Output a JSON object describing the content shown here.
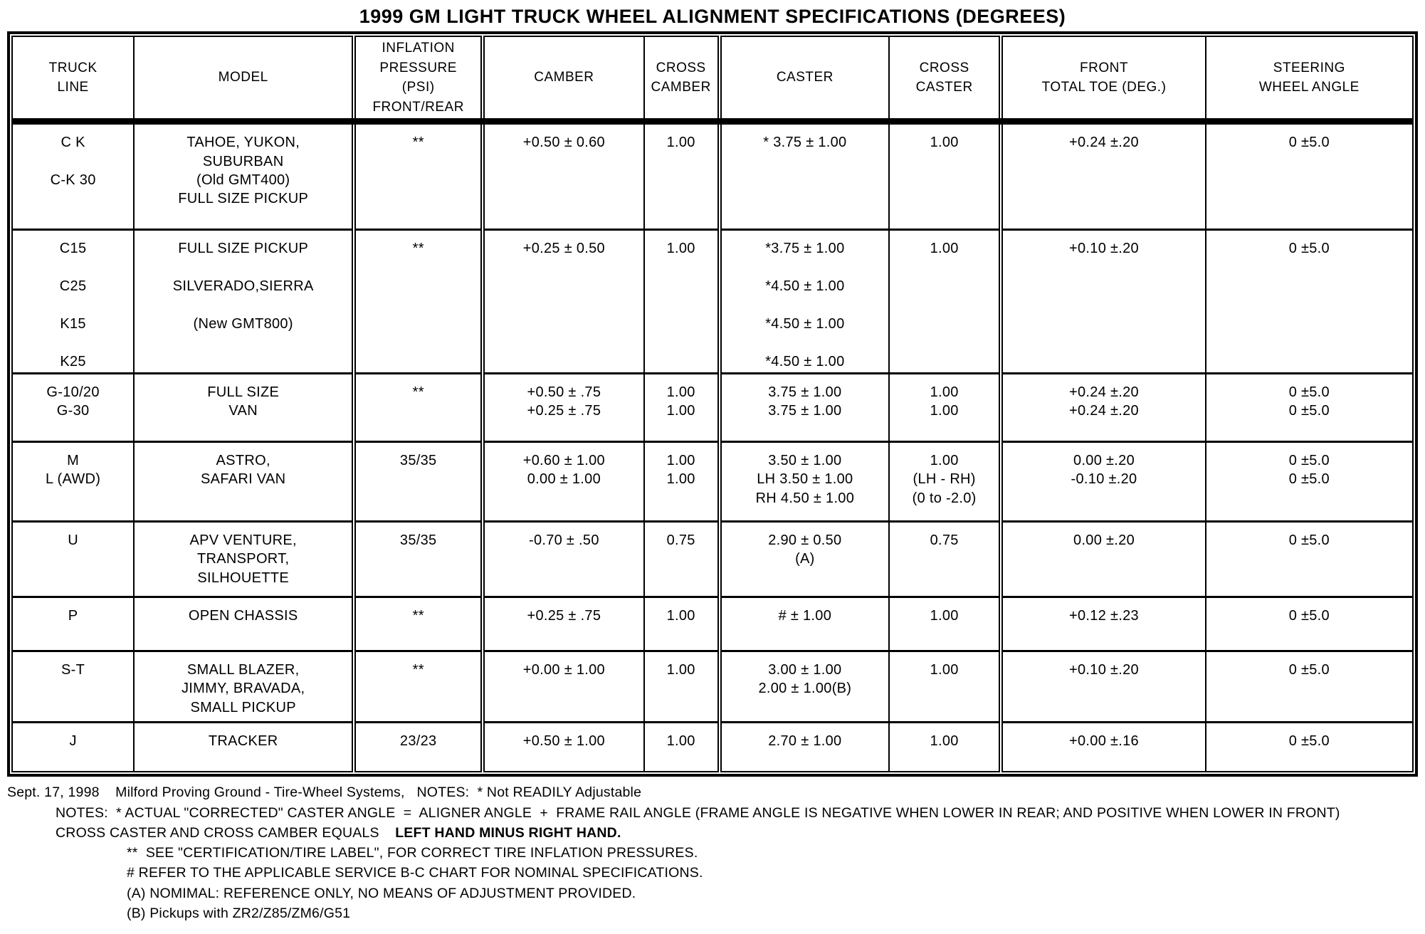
{
  "title": "1999 GM LIGHT TRUCK WHEEL ALIGNMENT SPECIFICATIONS (DEGREES)",
  "table": {
    "columns": [
      "TRUCK\nLINE",
      "MODEL",
      "INFLATION\nPRESSURE\n(PSI)\nFRONT/REAR",
      "CAMBER",
      "CROSS\nCAMBER",
      "CASTER",
      "CROSS\nCASTER",
      "FRONT\nTOTAL TOE (DEG.)",
      "STEERING\nWHEEL ANGLE"
    ],
    "rows": [
      [
        "C K\n\nC-K 30",
        "TAHOE, YUKON,\nSUBURBAN\n(Old GMT400)\nFULL SIZE PICKUP",
        "**",
        "+0.50 ± 0.60",
        "1.00",
        "* 3.75 ± 1.00",
        "1.00",
        "+0.24 ±.20",
        "0 ±5.0"
      ],
      [
        "C15\n\nC25\n\nK15\n\nK25",
        "FULL SIZE PICKUP\n\nSILVERADO,SIERRA\n\n(New GMT800)",
        "**",
        "+0.25 ± 0.50",
        "1.00",
        "*3.75 ± 1.00\n\n*4.50 ± 1.00\n\n*4.50 ± 1.00\n\n*4.50 ± 1.00",
        "1.00",
        "+0.10 ±.20",
        "0 ±5.0"
      ],
      [
        "G-10/20\nG-30",
        "FULL SIZE\nVAN",
        "**",
        "+0.50 ± .75\n+0.25 ± .75",
        "1.00\n1.00",
        "3.75 ± 1.00\n3.75 ± 1.00",
        "1.00\n1.00",
        "+0.24 ±.20\n+0.24 ±.20",
        "0 ±5.0\n0 ±5.0"
      ],
      [
        "M\nL (AWD)",
        "ASTRO,\nSAFARI VAN",
        "35/35",
        "+0.60 ± 1.00\n0.00 ± 1.00",
        "1.00\n1.00",
        "3.50 ± 1.00\nLH 3.50 ± 1.00\nRH 4.50 ± 1.00",
        "1.00\n(LH - RH)\n(0 to -2.0)",
        "0.00 ±.20\n-0.10 ±.20",
        "0 ±5.0\n0 ±5.0"
      ],
      [
        "U",
        "APV VENTURE,\nTRANSPORT,\nSILHOUETTE",
        "35/35",
        "-0.70 ± .50",
        "0.75",
        "2.90 ± 0.50\n(A)",
        "0.75",
        "0.00 ±.20",
        "0 ±5.0"
      ],
      [
        "P",
        "OPEN CHASSIS",
        "**",
        "+0.25 ± .75",
        "1.00",
        "# ± 1.00",
        "1.00",
        "+0.12 ±.23",
        "0 ±5.0"
      ],
      [
        "S-T",
        "SMALL BLAZER,\nJIMMY, BRAVADA,\nSMALL PICKUP",
        "**",
        "+0.00 ± 1.00",
        "1.00",
        "3.00 ± 1.00\n2.00 ± 1.00(B)",
        "1.00",
        "+0.10 ±.20",
        "0 ±5.0"
      ],
      [
        "J",
        "TRACKER",
        "23/23",
        "+0.50 ± 1.00",
        "1.00",
        "2.70 ± 1.00",
        "1.00",
        "+0.00 ±.16",
        "0 ±5.0"
      ]
    ]
  },
  "notes": {
    "dateline": "Sept. 17, 1998    Milford Proving Ground - Tire-Wheel Systems,   NOTES:  * Not READILY Adjustable",
    "caster_note": "NOTES:  * ACTUAL \"CORRECTED\" CASTER ANGLE  =  ALIGNER ANGLE  +  FRAME RAIL ANGLE (FRAME ANGLE IS NEGATIVE WHEN LOWER IN REAR; AND POSITIVE WHEN LOWER IN FRONT)",
    "cross_prefix": "CROSS CASTER AND CROSS CAMBER EQUALS    ",
    "cross_bold": "LEFT HAND MINUS RIGHT HAND.",
    "tire_label": "**  SEE \"CERTIFICATION/TIRE LABEL\", FOR CORRECT TIRE INFLATION PRESSURES.",
    "bc_chart": "# REFER TO THE APPLICABLE SERVICE B-C CHART FOR NOMINAL SPECIFICATIONS.",
    "nominal": "(A) NOMIMAL: REFERENCE ONLY, NO MEANS OF ADJUSTMENT PROVIDED.",
    "pickups": "(B) Pickups with ZR2/Z85/ZM6/G51"
  }
}
